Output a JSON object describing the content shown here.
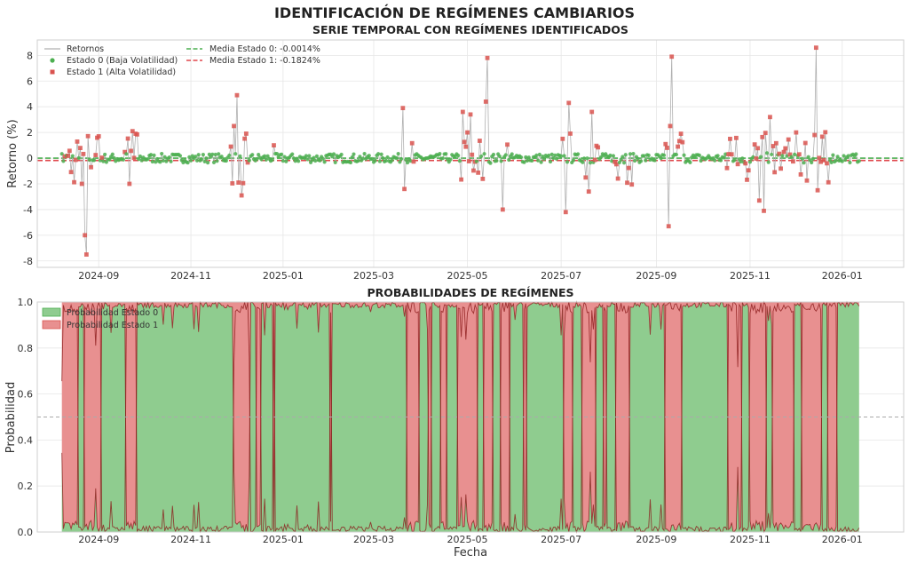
{
  "colors": {
    "state0": "#4caf50",
    "state0_fill": "#8fcc8f",
    "state1": "#d9534f",
    "state1_fill": "#e89090",
    "series_line": "#b0b0b0",
    "prob_line": "#8b1a1a",
    "mean0_line": "#4caf50",
    "mean1_line": "#e0474c",
    "threshold_line": "#aaaaaa"
  },
  "chart_data": {
    "suptitle": "IDENTIFICACIÓN DE REGÍMENES CAMBIARIOS",
    "x_tick_labels": [
      "2024-09",
      "2024-11",
      "2025-01",
      "2025-03",
      "2025-05",
      "2025-07",
      "2025-09",
      "2025-11",
      "2026-01"
    ],
    "x_tick_index": [
      24,
      84,
      144,
      203,
      264,
      325,
      387,
      448,
      508
    ],
    "x_range_index": [
      -16,
      548
    ],
    "top": {
      "type": "line",
      "title": "SERIE TEMPORAL CON REGÍMENES IDENTIFICADOS",
      "ylabel": "Retorno (%)",
      "ylim": [
        -8.5,
        9.2
      ],
      "yticks": [
        -8,
        -6,
        -4,
        -2,
        0,
        2,
        4,
        6,
        8
      ],
      "legend": {
        "returns": "Retornos",
        "state0": "Estado 0 (Baja Volatilidad)",
        "state1": "Estado 1 (Alta Volatilidad)",
        "mean0": "Media Estado 0: -0.0014%",
        "mean1": "Media Estado 1: -0.1824%"
      },
      "mean0": -0.0014,
      "mean1": -0.1824,
      "n_points": 520,
      "spikes": [
        {
          "i": 15,
          "v": -6.0
        },
        {
          "i": 16,
          "v": -7.5
        },
        {
          "i": 13,
          "v": -2.0
        },
        {
          "i": 24,
          "v": 1.7
        },
        {
          "i": 46,
          "v": 2.1
        },
        {
          "i": 48,
          "v": 1.9
        },
        {
          "i": 44,
          "v": -2.0
        },
        {
          "i": 114,
          "v": 4.9
        },
        {
          "i": 112,
          "v": 2.5
        },
        {
          "i": 117,
          "v": -2.9
        },
        {
          "i": 115,
          "v": -1.9
        },
        {
          "i": 138,
          "v": 1.0
        },
        {
          "i": 222,
          "v": 3.9
        },
        {
          "i": 223,
          "v": -2.4
        },
        {
          "i": 261,
          "v": 3.6
        },
        {
          "i": 264,
          "v": 2.0
        },
        {
          "i": 266,
          "v": 3.4
        },
        {
          "i": 276,
          "v": 4.4
        },
        {
          "i": 277,
          "v": 7.8
        },
        {
          "i": 287,
          "v": -4.0
        },
        {
          "i": 328,
          "v": -4.2
        },
        {
          "i": 330,
          "v": 4.3
        },
        {
          "i": 345,
          "v": 3.6
        },
        {
          "i": 343,
          "v": -2.6
        },
        {
          "i": 395,
          "v": -5.3
        },
        {
          "i": 396,
          "v": 2.5
        },
        {
          "i": 397,
          "v": 7.9
        },
        {
          "i": 401,
          "v": 0.9
        },
        {
          "i": 403,
          "v": 1.9
        },
        {
          "i": 435,
          "v": 1.5
        },
        {
          "i": 454,
          "v": -3.3
        },
        {
          "i": 457,
          "v": -4.1
        },
        {
          "i": 461,
          "v": 3.2
        },
        {
          "i": 491,
          "v": 8.6
        },
        {
          "i": 492,
          "v": -2.5
        },
        {
          "i": 490,
          "v": 1.8
        }
      ],
      "calm_ranges": [
        [
          28,
          40
        ],
        [
          50,
          108
        ],
        [
          122,
          225
        ],
        [
          230,
          258
        ],
        [
          280,
          286
        ],
        [
          292,
          325
        ],
        [
          333,
          340
        ],
        [
          350,
          358
        ],
        [
          372,
          392
        ],
        [
          405,
          432
        ],
        [
          500,
          520
        ]
      ]
    },
    "bottom": {
      "type": "area",
      "title": "PROBABILIDADES DE REGÍMENES",
      "xlabel": "Fecha",
      "ylabel": "Probabilidad",
      "ylim": [
        0,
        1
      ],
      "yticks": [
        0.0,
        0.2,
        0.4,
        0.6,
        0.8,
        1.0
      ],
      "threshold": 0.5,
      "legend": {
        "state0": "Probabilidad Estado 0",
        "state1": "Probabilidad Estado 1"
      },
      "state0_regimes": [
        [
          11,
          14
        ],
        [
          26,
          41
        ],
        [
          49,
          111
        ],
        [
          123,
          126
        ],
        [
          130,
          137
        ],
        [
          139,
          174
        ],
        [
          176,
          224
        ],
        [
          233,
          238
        ],
        [
          241,
          246
        ],
        [
          251,
          257
        ],
        [
          271,
          274
        ],
        [
          281,
          285
        ],
        [
          292,
          300
        ],
        [
          303,
          326
        ],
        [
          333,
          338
        ],
        [
          348,
          352
        ],
        [
          355,
          360
        ],
        [
          370,
          392
        ],
        [
          404,
          433
        ],
        [
          443,
          447
        ],
        [
          459,
          462
        ],
        [
          477,
          481
        ],
        [
          495,
          498
        ],
        [
          505,
          523
        ]
      ]
    }
  }
}
